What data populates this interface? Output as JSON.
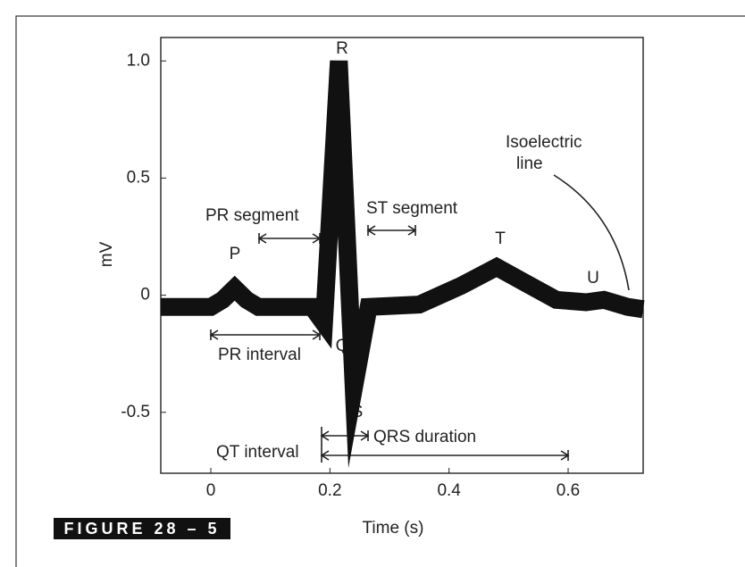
{
  "chart_data": {
    "type": "line",
    "x": [
      -0.084,
      0.0,
      0.02,
      0.04,
      0.06,
      0.08,
      0.17,
      0.19,
      0.215,
      0.24,
      0.265,
      0.35,
      0.42,
      0.48,
      0.53,
      0.58,
      0.63,
      0.66,
      0.7,
      0.726
    ],
    "values": [
      -0.05,
      -0.05,
      -0.02,
      0.03,
      -0.02,
      -0.05,
      -0.05,
      -0.12,
      1.0,
      -0.4,
      -0.05,
      -0.04,
      0.04,
      0.12,
      0.05,
      -0.02,
      -0.03,
      -0.02,
      -0.05,
      -0.06
    ],
    "color": "#111",
    "xlim": [
      -0.084,
      0.726
    ],
    "ylim": [
      -0.76,
      1.1
    ],
    "xticks": [
      0,
      0.2,
      0.4,
      0.6
    ],
    "yticks": [
      -0.5,
      0,
      0.5,
      {
        "value": 1,
        "label": "1.0"
      }
    ],
    "xlabel": "Time (s)",
    "ylabel": "mV",
    "annotations": [
      "P",
      "Q",
      "R",
      "S",
      "T",
      "U",
      "PR segment",
      "ST segment",
      "PR interval",
      "QRS duration",
      "QT interval",
      "Isoelectric",
      "line"
    ],
    "figure_label": "FIGURE 28 – 5"
  }
}
